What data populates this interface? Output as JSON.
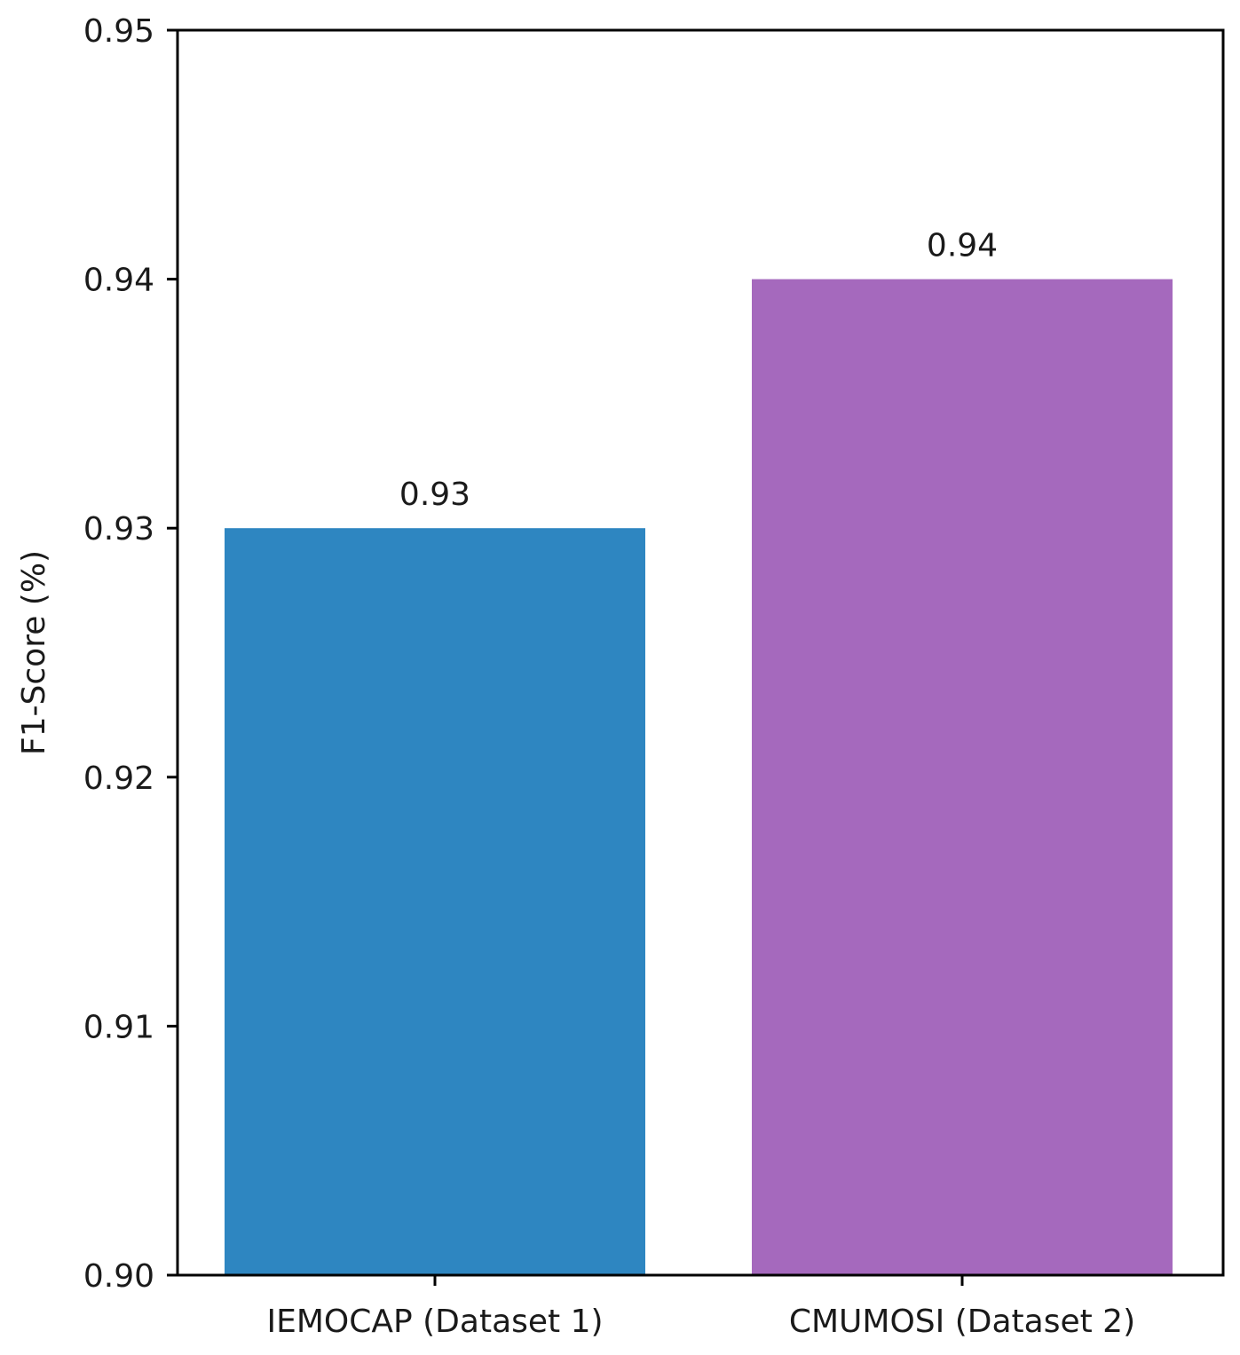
{
  "chart_data": {
    "type": "bar",
    "title": "",
    "xlabel": "",
    "ylabel": "F1-Score (%)",
    "categories": [
      "IEMOCAP (Dataset 1)",
      "CMUMOSI (Dataset 2)"
    ],
    "values": [
      0.93,
      0.94
    ],
    "data_labels": [
      "0.93",
      "0.94"
    ],
    "colors": [
      "#2e86c1",
      "#a569bd"
    ],
    "ylim": [
      0.9,
      0.95
    ],
    "yticks": [
      0.9,
      0.91,
      0.92,
      0.93,
      0.94,
      0.95
    ],
    "ytick_labels": [
      "0.90",
      "0.91",
      "0.92",
      "0.93",
      "0.94",
      "0.95"
    ],
    "grid": false,
    "legend": "none"
  }
}
